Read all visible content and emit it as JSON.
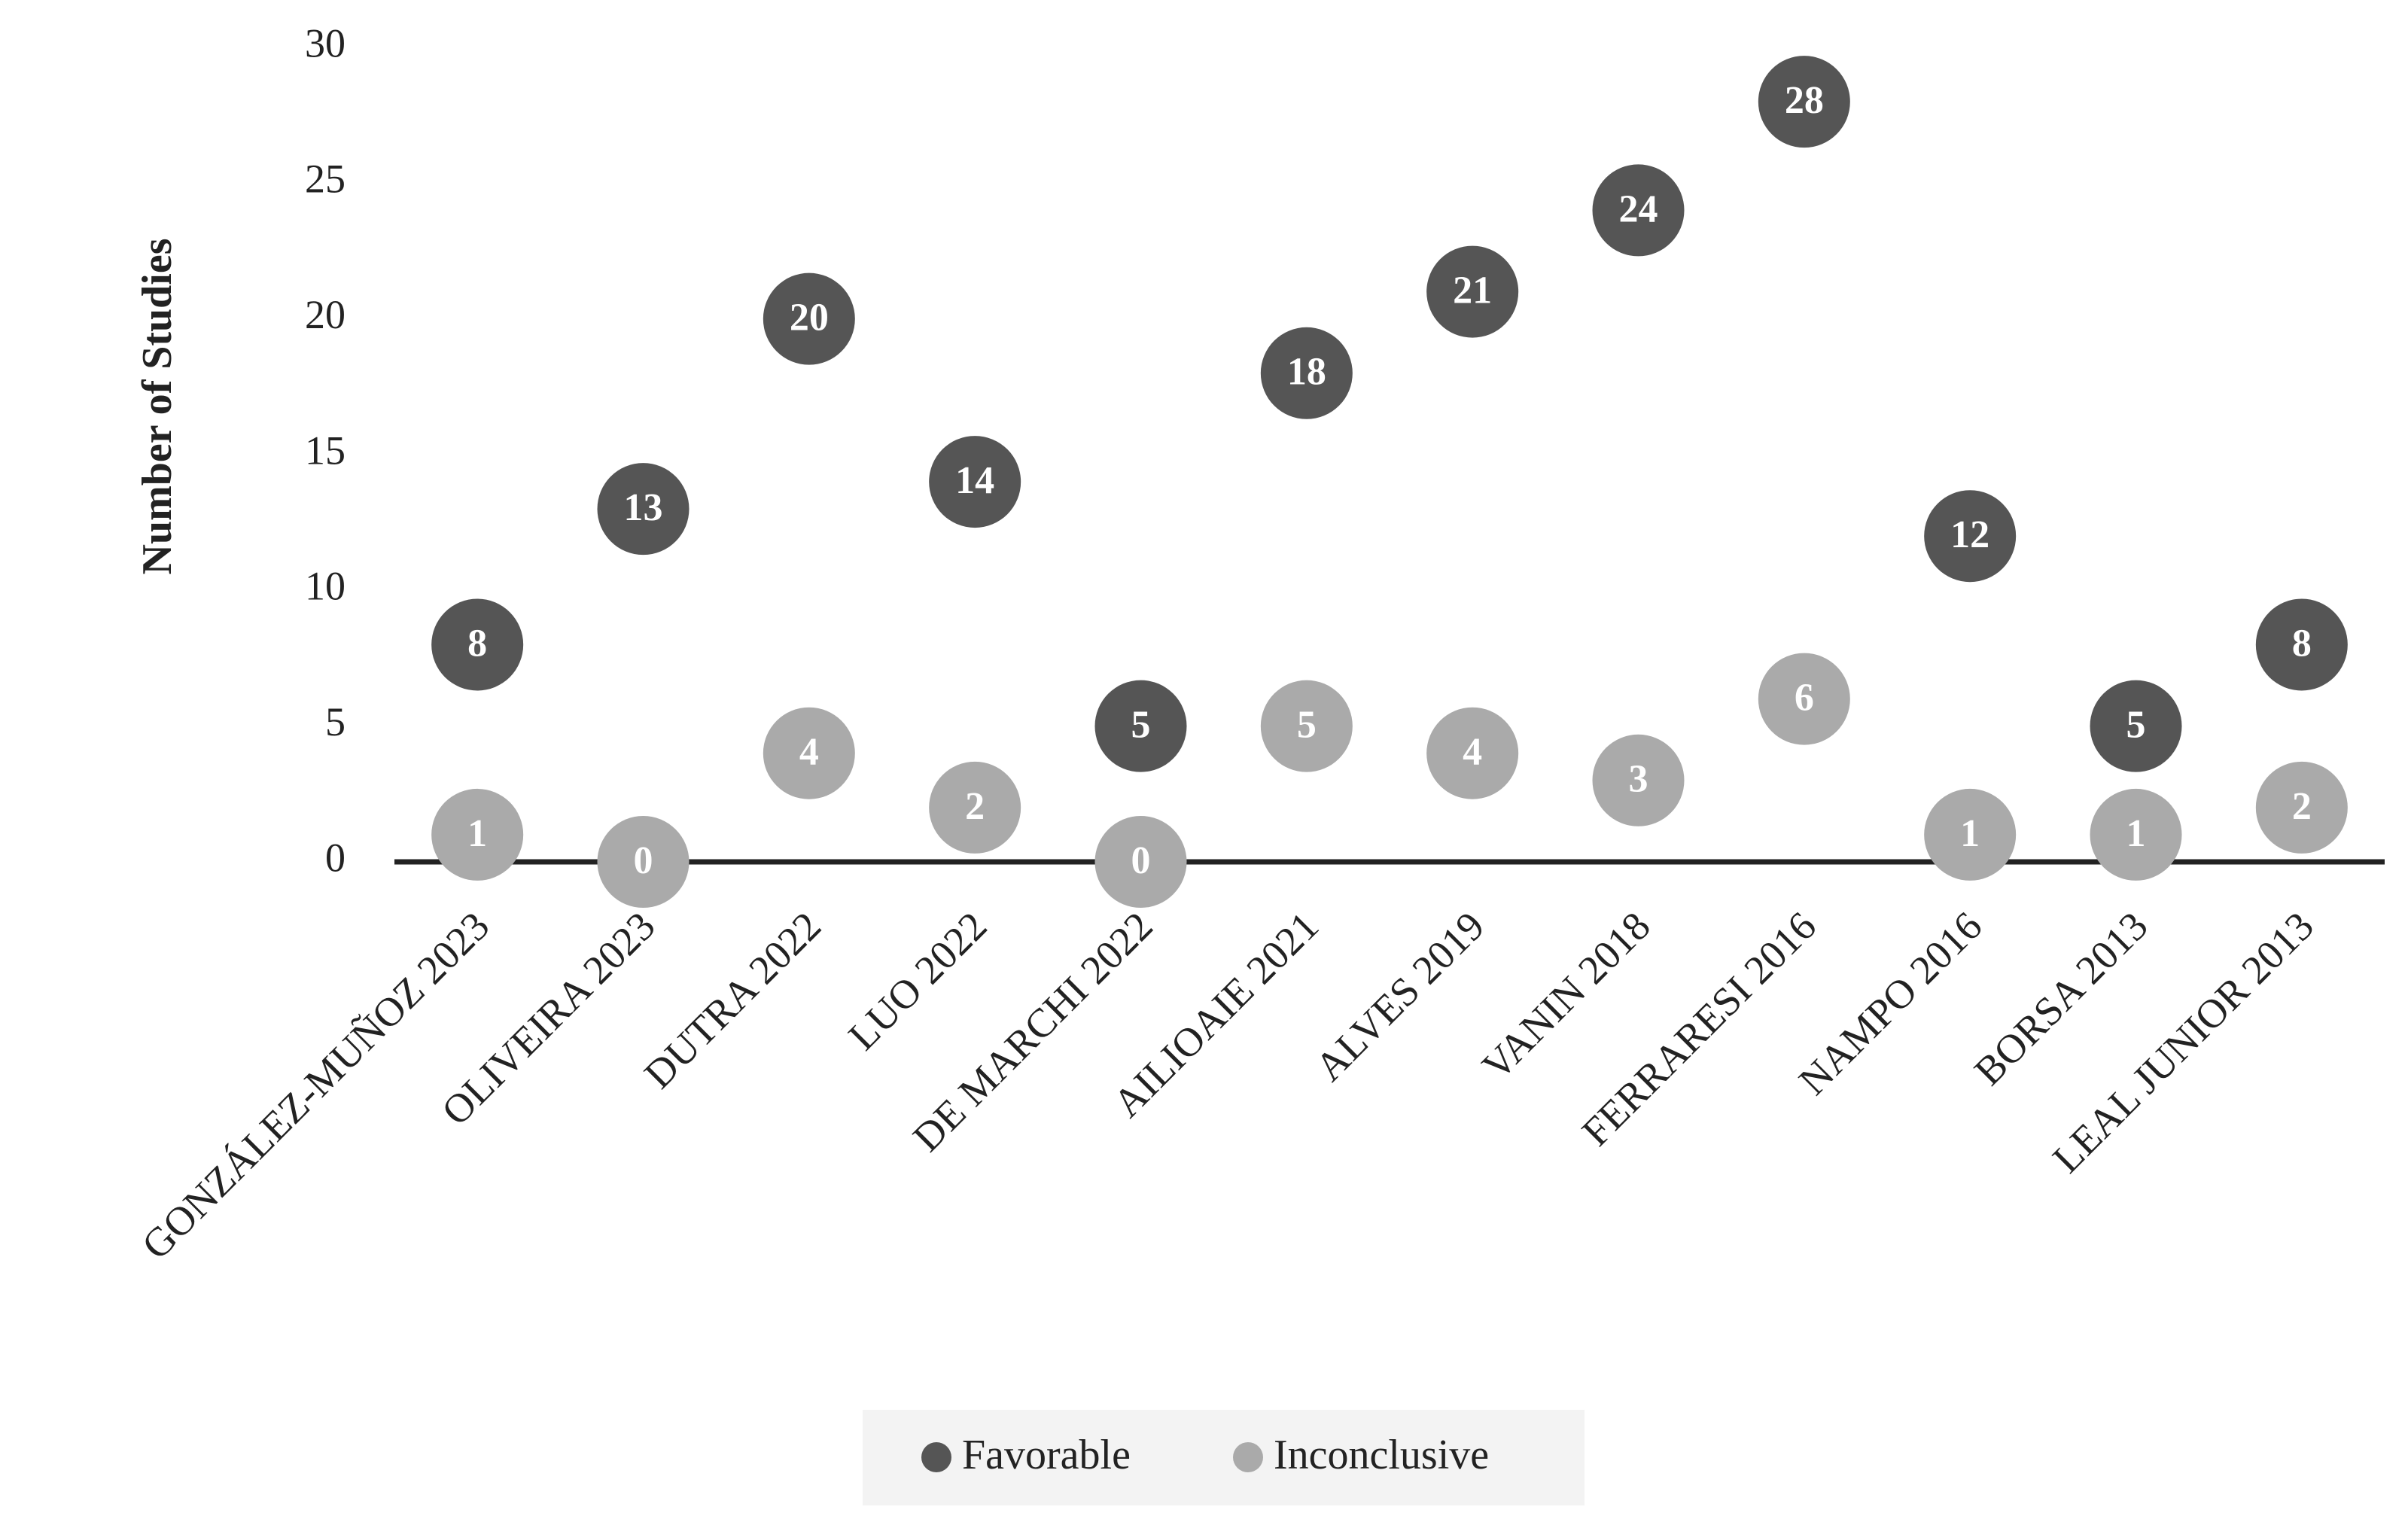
{
  "chart_data": {
    "type": "dot",
    "y_label": "Number of Studies",
    "categories": [
      "GONZÁLEZ-MUÑOZ 2023",
      "OLIVEIRA 2023",
      "DUTRA 2022",
      "LUO 2022",
      "DE MARCHI 2022",
      "AILIOAIE 2021",
      "ALVES 2019",
      "VANIN 2018",
      "FERRARESI 2016",
      "NAMPO 2016",
      "BORSA 2013",
      "LEAL JUNIOR 2013"
    ],
    "series": [
      {
        "name": "Favorable",
        "color": "#555555",
        "values": [
          8,
          13,
          20,
          14,
          5,
          18,
          21,
          24,
          28,
          12,
          5,
          8
        ]
      },
      {
        "name": "Inconclusive",
        "color": "#aaaaaa",
        "values": [
          1,
          0,
          4,
          2,
          0,
          5,
          4,
          3,
          6,
          1,
          1,
          2
        ]
      }
    ],
    "ylim": [
      0,
      30
    ],
    "yticks": [
      0,
      5,
      10,
      15,
      20,
      25,
      30
    ],
    "grid": false,
    "legend": "bottom"
  }
}
